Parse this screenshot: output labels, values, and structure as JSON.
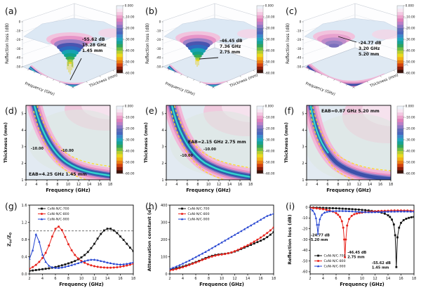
{
  "colorbar": {
    "ticks": [
      "0.000",
      "-10.00",
      "-20.00",
      "-30.00",
      "-40.00",
      "-50.00",
      "-60.00"
    ],
    "colors": [
      "#edf2f9",
      "#f7e6f1",
      "#f3c8e1",
      "#eca3cd",
      "#de7fb9",
      "#bb7ec6",
      "#8d78c6",
      "#5f6cb8",
      "#4a66bd",
      "#3a88ca",
      "#21a6bd",
      "#17a295",
      "#2ea55f",
      "#6fbc45",
      "#b6cf2f",
      "#e9d91d",
      "#f2b214",
      "#ea7b10",
      "#d2410e",
      "#8c1d0b",
      "#3a120a"
    ]
  },
  "chart_data": [
    {
      "id": "a",
      "type": "surface3d",
      "label": "(a)",
      "zlabel": "Reflection loss (dB)",
      "xlabel": "Frequency (GHz)",
      "ylabel": "Thickness (mm)",
      "zticks": [
        "0",
        "-10",
        "-20",
        "-30",
        "-40",
        "-50"
      ],
      "freq_range_ghz": [
        2,
        18
      ],
      "thickness_range_mm": [
        1,
        5
      ],
      "min_reflection_loss_db": -55.62,
      "at_frequency_ghz": 15.28,
      "at_thickness_mm": 1.45,
      "annotation_lines": [
        "-55.62 dB",
        "15.28 GHz",
        "1.45 mm"
      ]
    },
    {
      "id": "b",
      "type": "surface3d",
      "label": "(b)",
      "zlabel": "Reflection loss (dB)",
      "xlabel": "Frequency (GHz)",
      "ylabel": "Thickness (mm)",
      "zticks": [
        "0",
        "-10",
        "-20",
        "-30",
        "-40",
        "-50"
      ],
      "freq_range_ghz": [
        2,
        18
      ],
      "thickness_range_mm": [
        1,
        5
      ],
      "min_reflection_loss_db": -46.45,
      "at_frequency_ghz": 7.36,
      "at_thickness_mm": 2.75,
      "annotation_lines": [
        "-46.45 dB",
        "7.36 GHz",
        "2.75 mm"
      ]
    },
    {
      "id": "c",
      "type": "surface3d",
      "label": "(c)",
      "zlabel": "Reflection loss (dB)",
      "xlabel": "Frequency (GHz)",
      "ylabel": "Thickness (mm)",
      "zticks": [
        "0",
        "-10",
        "-20",
        "-30",
        "-40",
        "-50"
      ],
      "freq_range_ghz": [
        2,
        18
      ],
      "thickness_range_mm": [
        1,
        5
      ],
      "min_reflection_loss_db": -24.77,
      "at_frequency_ghz": 3.2,
      "at_thickness_mm": 5.2,
      "annotation_lines": [
        "-24.77 dB",
        "3.20 GHz",
        "5.20 mm"
      ]
    },
    {
      "id": "d",
      "type": "contour",
      "label": "(d)",
      "xlabel": "Frequency (GHz)",
      "ylabel": "Thickness (mm)",
      "xlim": [
        2,
        18
      ],
      "ylim": [
        1,
        5.5
      ],
      "xticks": [
        2,
        4,
        6,
        8,
        10,
        12,
        14,
        16,
        18
      ],
      "yticks": [
        1,
        2,
        3,
        4,
        5
      ],
      "eab_label": "EAB=4.25 GHz 1.45 mm",
      "eab_ghz": 4.25,
      "eab_thickness_mm": 1.45,
      "contour_value_labels": [
        "-10.00",
        "-10.00"
      ]
    },
    {
      "id": "e",
      "type": "contour",
      "label": "(e)",
      "xlabel": "Frequency (GHz)",
      "ylabel": "Thickness (mm)",
      "xlim": [
        2,
        18
      ],
      "ylim": [
        1,
        5.5
      ],
      "xticks": [
        2,
        4,
        6,
        8,
        10,
        12,
        14,
        16,
        18
      ],
      "yticks": [
        1,
        2,
        3,
        4,
        5
      ],
      "eab_label": "EAB=2.15 GHz 2.75 mm",
      "eab_ghz": 2.15,
      "eab_thickness_mm": 2.75,
      "contour_value_labels": [
        "-10.00",
        "-10.00"
      ]
    },
    {
      "id": "f",
      "type": "contour",
      "label": "(f)",
      "xlabel": "Frequency (GHz)",
      "ylabel": "Thickness (mm)",
      "xlim": [
        2,
        18
      ],
      "ylim": [
        1,
        5.5
      ],
      "xticks": [
        2,
        4,
        6,
        8,
        10,
        12,
        14,
        16,
        18
      ],
      "yticks": [
        1,
        2,
        3,
        4,
        5
      ],
      "eab_label": "EAB=0.87 GHz 5.20 mm",
      "eab_ghz": 0.87,
      "eab_thickness_mm": 5.2,
      "contour_value_labels": []
    },
    {
      "id": "g",
      "type": "line",
      "label": "(g)",
      "xlabel": "Frequency (GHz)",
      "ylabel_parts": [
        {
          "t": "Z"
        },
        {
          "t": "in",
          "sub": true
        },
        {
          "t": "/Z"
        },
        {
          "t": "0",
          "sub": true
        }
      ],
      "xlim": [
        2,
        18
      ],
      "ylim": [
        0,
        1.6
      ],
      "xticks": [
        2,
        4,
        6,
        8,
        10,
        12,
        14,
        16,
        18
      ],
      "yticks": [
        0,
        0.4,
        0.8,
        1.2,
        1.6
      ],
      "ytick_labels": [
        "0.0",
        "0.4",
        "0.8",
        "1.2",
        "1.6"
      ],
      "ref_y": 1.0,
      "legend_pos": "tl",
      "series": [
        {
          "name": "CoNi-N/C-700",
          "color": "#111111",
          "marker": "square",
          "x": [
            2,
            2.5,
            3,
            3.5,
            4,
            4.5,
            5,
            5.5,
            6,
            6.5,
            7,
            7.5,
            8,
            8.5,
            9,
            9.5,
            10,
            10.5,
            11,
            11.5,
            12,
            12.5,
            13,
            13.5,
            14,
            14.5,
            15,
            15.5,
            16,
            16.5,
            17,
            17.5,
            18
          ],
          "y": [
            0.07,
            0.08,
            0.09,
            0.1,
            0.11,
            0.12,
            0.13,
            0.145,
            0.16,
            0.18,
            0.2,
            0.22,
            0.245,
            0.27,
            0.3,
            0.34,
            0.385,
            0.44,
            0.51,
            0.6,
            0.7,
            0.82,
            0.93,
            1.01,
            1.05,
            1.05,
            1.01,
            0.95,
            0.87,
            0.79,
            0.7,
            0.61,
            0.53
          ]
        },
        {
          "name": "CoNi-N/C-800",
          "color": "#e8231c",
          "marker": "circle",
          "x": [
            2,
            2.5,
            3,
            3.5,
            4,
            4.5,
            5,
            5.5,
            6,
            6.5,
            7,
            7.5,
            8,
            8.5,
            9,
            9.5,
            10,
            10.5,
            11,
            11.5,
            12,
            12.5,
            13,
            13.5,
            14,
            14.5,
            15,
            15.5,
            16,
            16.5,
            17,
            17.5,
            18
          ],
          "y": [
            0.12,
            0.16,
            0.21,
            0.28,
            0.37,
            0.49,
            0.66,
            0.87,
            1.05,
            1.1,
            1.02,
            0.86,
            0.69,
            0.55,
            0.44,
            0.36,
            0.3,
            0.26,
            0.225,
            0.2,
            0.18,
            0.165,
            0.155,
            0.15,
            0.145,
            0.145,
            0.15,
            0.155,
            0.165,
            0.18,
            0.195,
            0.215,
            0.235
          ]
        },
        {
          "name": "CoNi-N/C-900",
          "color": "#2141d0",
          "marker": "triangle",
          "x": [
            2,
            2.5,
            3,
            3.5,
            4,
            4.5,
            5,
            5.5,
            6,
            6.5,
            7,
            7.5,
            8,
            8.5,
            9,
            9.5,
            10,
            10.5,
            11,
            11.5,
            12,
            12.5,
            13,
            13.5,
            14,
            14.5,
            15,
            15.5,
            16,
            16.5,
            17,
            17.5,
            18
          ],
          "y": [
            0.35,
            0.55,
            0.92,
            0.75,
            0.45,
            0.28,
            0.19,
            0.155,
            0.14,
            0.14,
            0.15,
            0.165,
            0.185,
            0.205,
            0.225,
            0.25,
            0.275,
            0.3,
            0.32,
            0.33,
            0.33,
            0.32,
            0.3,
            0.285,
            0.265,
            0.25,
            0.235,
            0.225,
            0.22,
            0.225,
            0.235,
            0.25,
            0.27
          ]
        }
      ]
    },
    {
      "id": "h",
      "type": "line",
      "label": "(h)",
      "xlabel": "Frequence (GHz)",
      "ylabel_parts": [
        {
          "t": "Attenuation constant (α)"
        }
      ],
      "xlim": [
        2,
        18
      ],
      "ylim": [
        0,
        400
      ],
      "xticks": [
        2,
        4,
        6,
        8,
        10,
        12,
        14,
        16,
        18
      ],
      "yticks": [
        0,
        100,
        200,
        300,
        400
      ],
      "ytick_labels": [
        "0",
        "100",
        "200",
        "300",
        "400"
      ],
      "legend_pos": "tl",
      "series": [
        {
          "name": "CoNi-N/C-700",
          "color": "#111111",
          "marker": "square",
          "x": [
            2,
            2.5,
            3,
            3.5,
            4,
            4.5,
            5,
            5.5,
            6,
            6.5,
            7,
            7.5,
            8,
            8.5,
            9,
            9.5,
            10,
            10.5,
            11,
            11.5,
            12,
            12.5,
            13,
            13.5,
            14,
            14.5,
            15,
            15.5,
            16,
            16.5,
            17,
            17.5,
            18
          ],
          "y": [
            25,
            29,
            33,
            38,
            43,
            49,
            55,
            62,
            69,
            76,
            84,
            92,
            99,
            105,
            110,
            113,
            115,
            117,
            120,
            124,
            130,
            137,
            145,
            153,
            161,
            169,
            177,
            185,
            193,
            202,
            214,
            228,
            243
          ]
        },
        {
          "name": "CoNi-N/C-800",
          "color": "#e8231c",
          "marker": "circle",
          "x": [
            2,
            2.5,
            3,
            3.5,
            4,
            4.5,
            5,
            5.5,
            6,
            6.5,
            7,
            7.5,
            8,
            8.5,
            9,
            9.5,
            10,
            10.5,
            11,
            11.5,
            12,
            12.5,
            13,
            13.5,
            14,
            14.5,
            15,
            15.5,
            16,
            16.5,
            17,
            17.5,
            18
          ],
          "y": [
            20,
            24,
            28,
            33,
            39,
            45,
            52,
            59,
            66,
            73,
            81,
            88,
            95,
            101,
            106,
            110,
            113,
            116,
            120,
            125,
            132,
            140,
            149,
            158,
            167,
            177,
            188,
            199,
            211,
            224,
            238,
            253,
            270
          ]
        },
        {
          "name": "CoNi-N/C-900",
          "color": "#2141d0",
          "marker": "triangle",
          "x": [
            2,
            2.5,
            3,
            3.5,
            4,
            4.5,
            5,
            5.5,
            6,
            6.5,
            7,
            7.5,
            8,
            8.5,
            9,
            9.5,
            10,
            10.5,
            11,
            11.5,
            12,
            12.5,
            13,
            13.5,
            14,
            14.5,
            15,
            15.5,
            16,
            16.5,
            17,
            17.5,
            18
          ],
          "y": [
            30,
            36,
            43,
            51,
            60,
            69,
            78,
            88,
            98,
            108,
            118,
            128,
            139,
            150,
            161,
            172,
            183,
            194,
            205,
            216,
            227,
            238,
            249,
            260,
            271,
            282,
            293,
            304,
            315,
            326,
            337,
            344,
            350
          ]
        }
      ]
    },
    {
      "id": "i",
      "type": "line",
      "label": "(i)",
      "xlabel": "Frequency (GHz)",
      "ylabel_parts": [
        {
          "t": "Reflection loss (dB)"
        }
      ],
      "xlim": [
        2,
        18
      ],
      "ylim": [
        -62,
        2
      ],
      "xticks": [
        2,
        4,
        6,
        8,
        10,
        12,
        14,
        16,
        18
      ],
      "yticks": [
        0,
        -10,
        -20,
        -30,
        -40,
        -50,
        -60
      ],
      "ytick_labels": [
        "0",
        "-10",
        "-20",
        "-30",
        "-40",
        "-50",
        "-60"
      ],
      "legend_pos": "bl",
      "series": [
        {
          "name": "CoNi-N/C-700",
          "color": "#111111",
          "marker": "square",
          "x": [
            2,
            2.5,
            3,
            3.5,
            4,
            4.5,
            5,
            5.5,
            6,
            6.5,
            7,
            7.5,
            8,
            8.5,
            9,
            9.5,
            10,
            10.5,
            11,
            11.5,
            12,
            12.5,
            13,
            13.5,
            14,
            14.3,
            14.6,
            14.9,
            15.1,
            15.28,
            15.45,
            15.7,
            16,
            16.4,
            16.8,
            17.2,
            17.6,
            18
          ],
          "y": [
            -0.3,
            -0.35,
            -0.4,
            -0.5,
            -0.6,
            -0.7,
            -0.8,
            -0.9,
            -1,
            -1.15,
            -1.3,
            -1.45,
            -1.6,
            -1.8,
            -2,
            -2.2,
            -2.5,
            -2.7,
            -3,
            -3.4,
            -3.8,
            -4.3,
            -5,
            -6,
            -7.5,
            -9,
            -11.5,
            -16,
            -26,
            -55.62,
            -28,
            -19,
            -14.5,
            -12,
            -10.7,
            -9.9,
            -9.3,
            -9
          ]
        },
        {
          "name": "CoNi-N/C-800",
          "color": "#e8231c",
          "marker": "circle",
          "x": [
            2,
            2.5,
            3,
            3.5,
            4,
            4.5,
            5,
            5.5,
            6,
            6.3,
            6.6,
            6.9,
            7.1,
            7.25,
            7.36,
            7.5,
            7.7,
            8,
            8.4,
            8.8,
            9.2,
            9.6,
            10,
            10.5,
            11,
            11.5,
            12,
            12.5,
            13,
            13.5,
            14,
            14.5,
            15,
            15.5,
            16,
            16.5,
            17,
            17.5,
            18
          ],
          "y": [
            -0.6,
            -0.8,
            -1,
            -1.4,
            -1.8,
            -2.4,
            -3,
            -4,
            -5.5,
            -7,
            -9,
            -13,
            -19,
            -30,
            -46.45,
            -30,
            -17,
            -11,
            -8,
            -6.5,
            -5.8,
            -5.3,
            -5,
            -4.5,
            -4.2,
            -3.9,
            -3.7,
            -3.5,
            -3.4,
            -3.3,
            -3.2,
            -3.1,
            -3,
            -3,
            -3,
            -3.1,
            -3.1,
            -3.2,
            -3.3
          ]
        },
        {
          "name": "CoNi-N/C-900",
          "color": "#2141d0",
          "marker": "triangle",
          "x": [
            2,
            2.4,
            2.7,
            2.9,
            3.05,
            3.2,
            3.35,
            3.5,
            3.8,
            4.2,
            4.6,
            5,
            5.5,
            6,
            6.5,
            7,
            7.5,
            8,
            8.5,
            9,
            9.5,
            10,
            10.5,
            11,
            11.5,
            12,
            12.5,
            13,
            13.5,
            14,
            14.5,
            15,
            15.5,
            16,
            16.5,
            17,
            17.5,
            18
          ],
          "y": [
            -1.5,
            -3,
            -6,
            -10,
            -16,
            -24.77,
            -16,
            -11,
            -7,
            -5,
            -4.2,
            -3.8,
            -3.6,
            -3.4,
            -3.4,
            -3.4,
            -3.5,
            -3.6,
            -3.8,
            -4,
            -4.2,
            -4.4,
            -4.5,
            -4.6,
            -4.6,
            -4.5,
            -4.4,
            -4.3,
            -4.2,
            -4.1,
            -4,
            -4,
            -3.9,
            -3.9,
            -3.9,
            -3.9,
            -4,
            -4
          ]
        }
      ],
      "annotations": [
        {
          "lines": [
            "-24.77 dB",
            "5.20 mm"
          ],
          "x": 2.1,
          "y": -27,
          "color": "#2141d0"
        },
        {
          "lines": [
            "-46.45 dB",
            "2.75 mm"
          ],
          "x": 7.75,
          "y": -43,
          "color": "#e8231c"
        },
        {
          "lines": [
            "-55.62 dB",
            "1.45 mm"
          ],
          "x": 11.5,
          "y": -53,
          "color": "#111111"
        }
      ]
    }
  ]
}
